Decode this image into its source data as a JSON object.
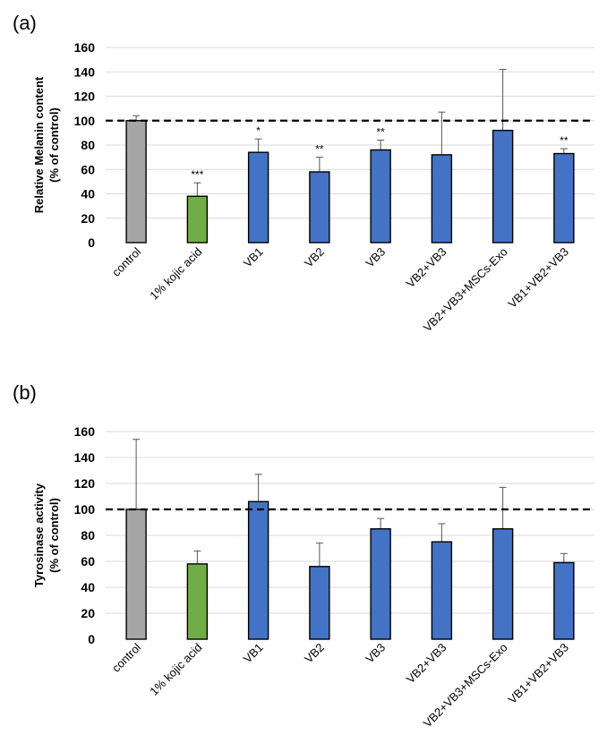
{
  "chart_data": [
    {
      "panel": "(a)",
      "type": "bar",
      "ylabel": "Relative Melanin content\n(% of control)",
      "ylim": [
        0,
        160
      ],
      "yticks": [
        0,
        20,
        40,
        60,
        80,
        100,
        120,
        140,
        160
      ],
      "grid": true,
      "reference_line": 100,
      "categories": [
        "control",
        "1% kojic acid",
        "VB1",
        "VB2",
        "VB3",
        "VB2+VB3",
        "VB2+VB3+MSCs-Exo",
        "VB1+VB2+VB3"
      ],
      "values": [
        100,
        38,
        74,
        58,
        76,
        72,
        92,
        73
      ],
      "errors": [
        4,
        11,
        11,
        12,
        8,
        35,
        50,
        4
      ],
      "significance": [
        "",
        "***",
        "*",
        "**",
        "**",
        "",
        "",
        "**"
      ],
      "colors": [
        "#a6a6a6",
        "#70ad47",
        "#4472c4",
        "#4472c4",
        "#4472c4",
        "#4472c4",
        "#4472c4",
        "#4472c4"
      ]
    },
    {
      "panel": "(b)",
      "type": "bar",
      "ylabel": "Tyrosinase activity\n(% of control)",
      "ylim": [
        0,
        160
      ],
      "yticks": [
        0,
        20,
        40,
        60,
        80,
        100,
        120,
        140,
        160
      ],
      "grid": true,
      "reference_line": 100,
      "categories": [
        "control",
        "1% kojic acid",
        "VB1",
        "VB2",
        "VB3",
        "VB2+VB3",
        "VB2+VB3+MSCs-Exo",
        "VB1+VB2+VB3"
      ],
      "values": [
        100,
        58,
        106,
        56,
        85,
        75,
        85,
        59
      ],
      "errors": [
        54,
        10,
        21,
        18,
        8,
        14,
        32,
        7
      ],
      "significance": [
        "",
        "",
        "",
        "",
        "",
        "",
        "",
        ""
      ],
      "colors": [
        "#a6a6a6",
        "#70ad47",
        "#4472c4",
        "#4472c4",
        "#4472c4",
        "#4472c4",
        "#4472c4",
        "#4472c4"
      ]
    }
  ]
}
